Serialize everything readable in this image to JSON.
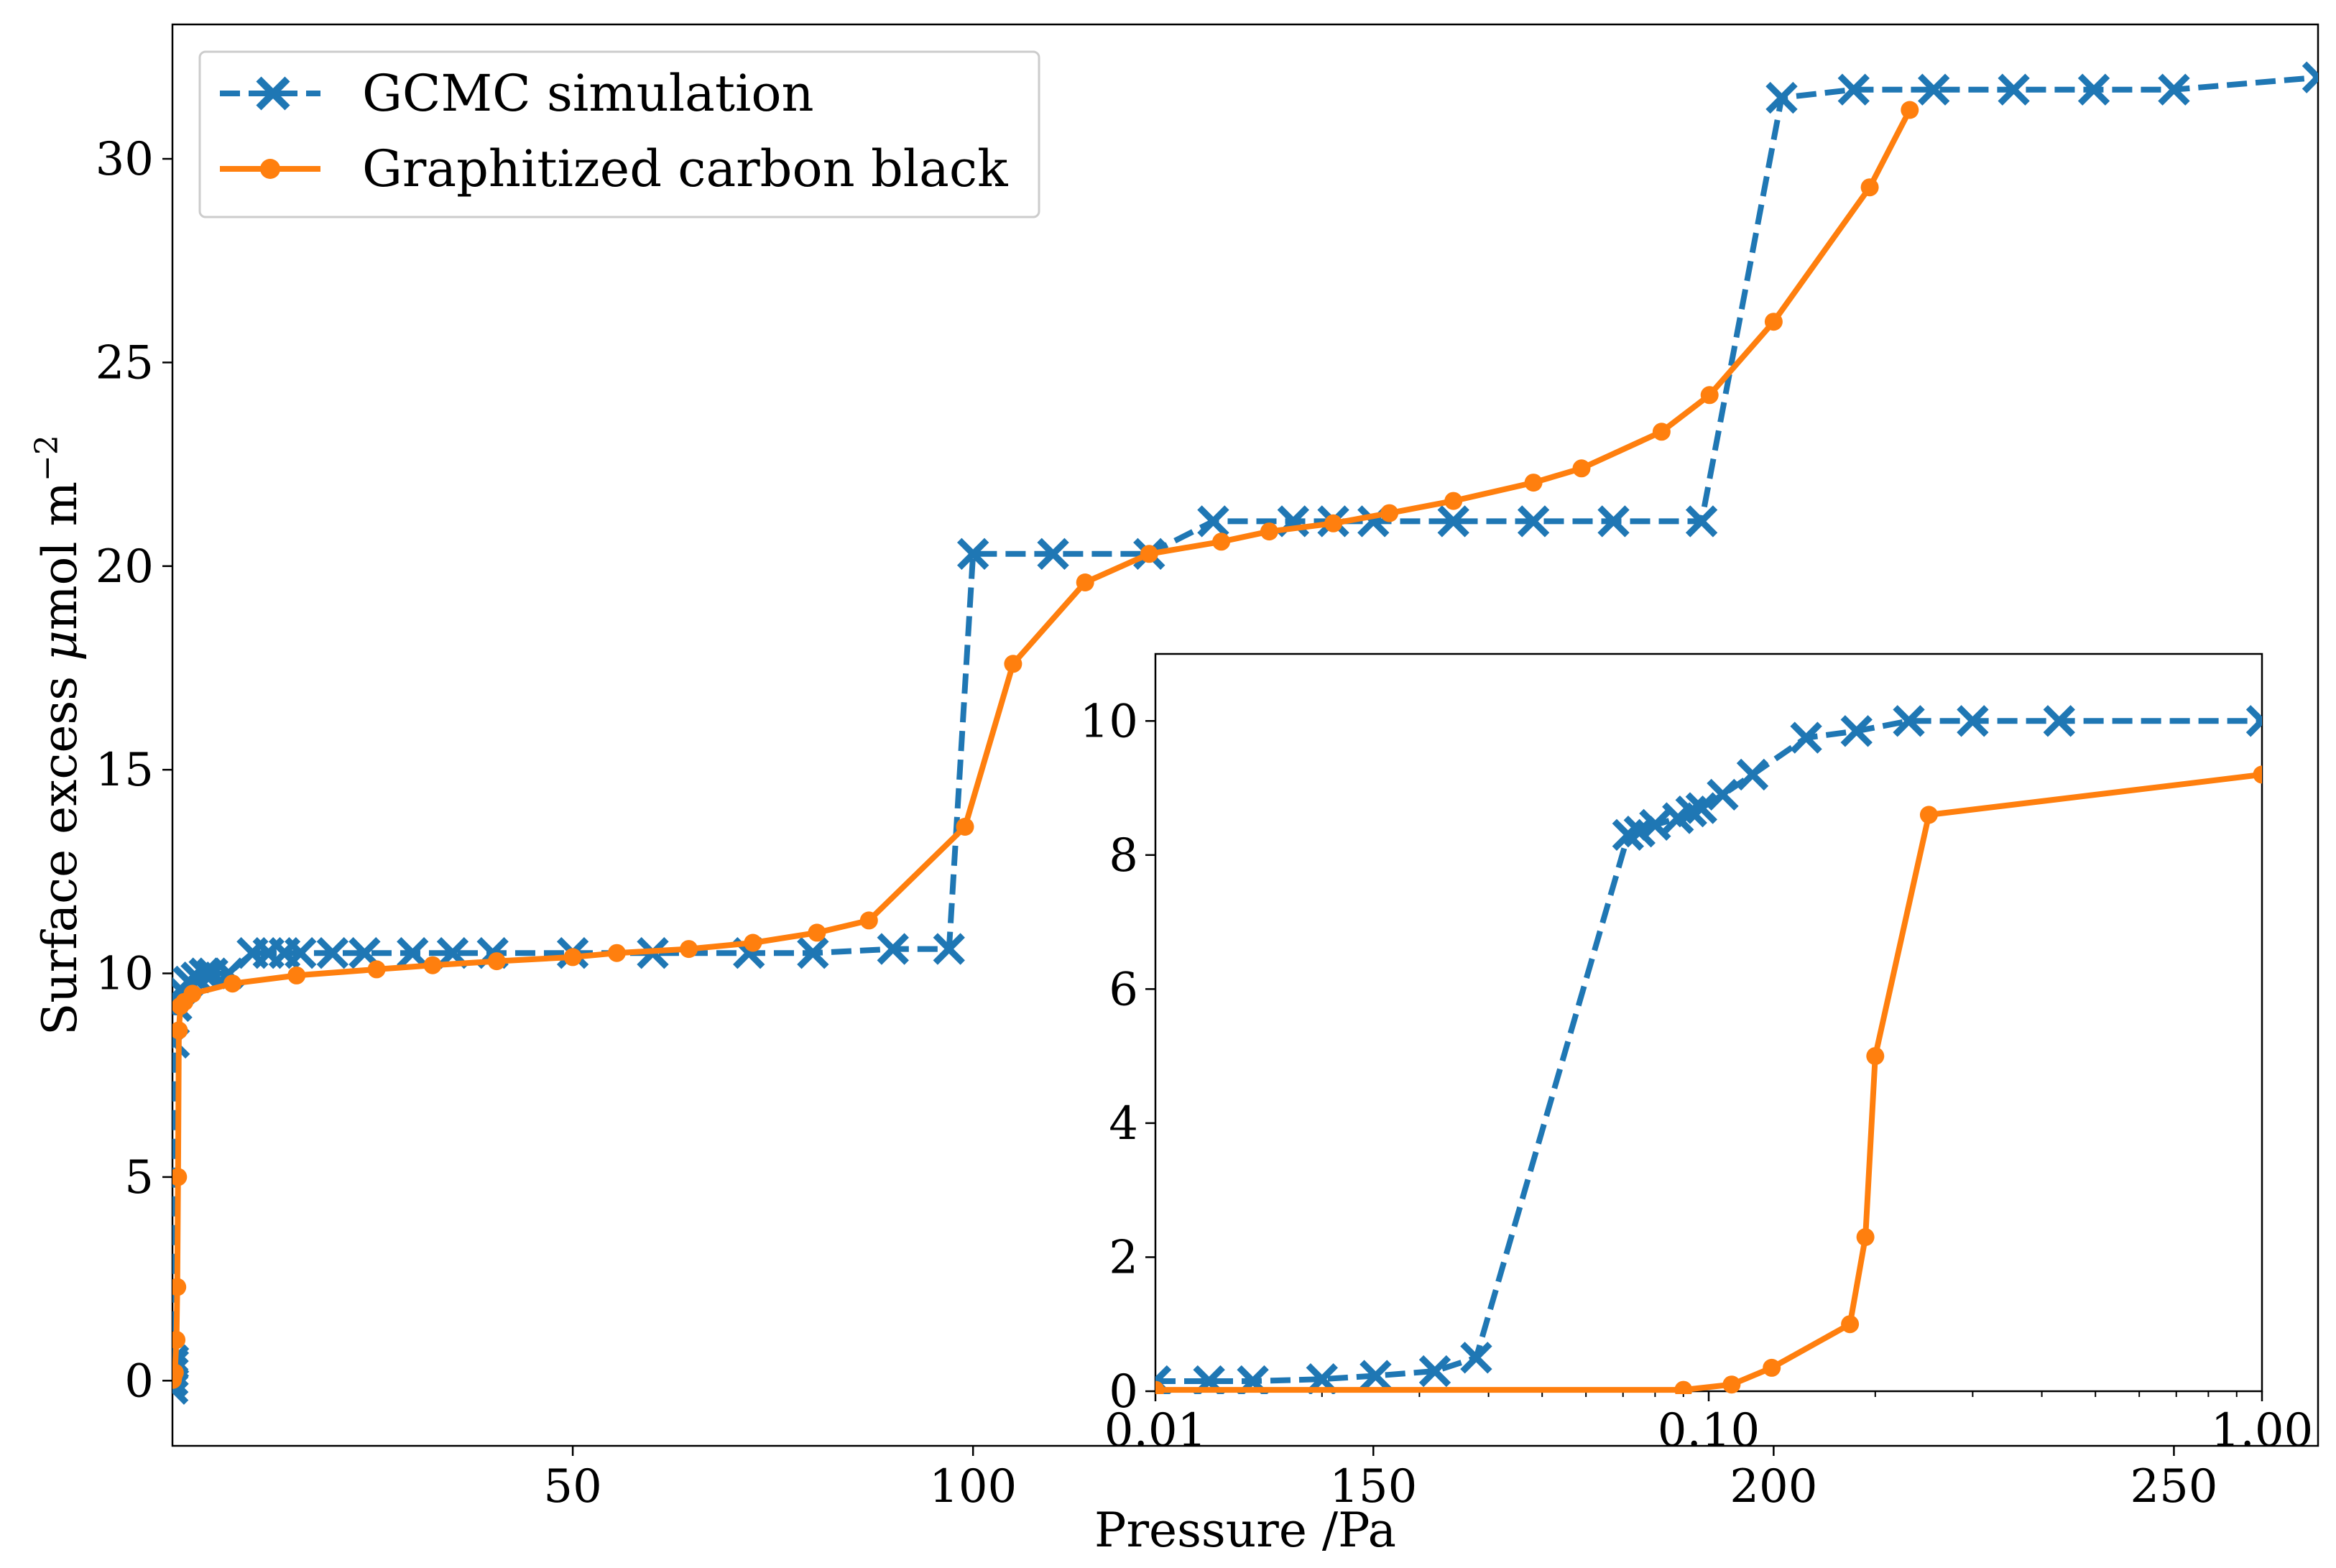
{
  "chart_data": [
    {
      "type": "line",
      "role": "main",
      "xlabel": "Pressure /Pa",
      "ylabel": "Surface excess μmol m⁻²",
      "ylabel_parts": {
        "main": "Surface excess ",
        "mu": "μ",
        "unit": "mol m",
        "sup": "−2"
      },
      "xlim": [
        0,
        268
      ],
      "ylim": [
        -1.6,
        33.3
      ],
      "xticks": [
        50,
        100,
        150,
        200,
        250
      ],
      "xtick_labels": [
        "50",
        "100",
        "150",
        "200",
        "250"
      ],
      "yticks": [
        0,
        5,
        10,
        15,
        20,
        25,
        30
      ],
      "ytick_labels": [
        "0",
        "5",
        "10",
        "15",
        "20",
        "25",
        "30"
      ],
      "legend": {
        "location": "upper-left",
        "entries": [
          "GCMC simulation",
          "Graphitized carbon black"
        ]
      },
      "series": [
        {
          "name": "GCMC simulation",
          "color": "#1f77b4",
          "style": "dashed",
          "marker": "x",
          "x": [
            0.01,
            0.02,
            0.05,
            0.08,
            0.1,
            0.2,
            0.5,
            1,
            2,
            3,
            4,
            5,
            7,
            10,
            12,
            14,
            16,
            20,
            24,
            30,
            35,
            40,
            50,
            60,
            72,
            80,
            90,
            97,
            100,
            110,
            122,
            130,
            140,
            145,
            150,
            160,
            170,
            180,
            191,
            201,
            210,
            220,
            230,
            240,
            250,
            268
          ],
          "y": [
            -0.2,
            0.0,
            0.2,
            0.4,
            0.5,
            8.3,
            9.2,
            9.6,
            9.8,
            9.9,
            10.0,
            10.0,
            10.0,
            10.5,
            10.5,
            10.5,
            10.5,
            10.5,
            10.5,
            10.5,
            10.5,
            10.5,
            10.5,
            10.5,
            10.5,
            10.5,
            10.6,
            10.6,
            20.3,
            20.3,
            20.3,
            21.1,
            21.1,
            21.1,
            21.1,
            21.1,
            21.1,
            21.1,
            21.1,
            31.5,
            31.7,
            31.7,
            31.7,
            31.7,
            31.7,
            32.0
          ]
        },
        {
          "name": "Graphitized carbon black",
          "color": "#ff7f0e",
          "style": "solid",
          "marker": "o",
          "x": [
            0.05,
            0.12,
            0.3,
            0.5,
            0.6,
            0.7,
            0.8,
            1.0,
            1.5,
            2.5,
            7.5,
            15.5,
            25.5,
            32.5,
            40.5,
            50,
            55.5,
            64.5,
            72.5,
            80.5,
            87,
            99,
            105,
            114,
            122,
            131,
            137,
            145,
            152,
            160,
            170,
            176,
            186,
            192,
            200,
            212,
            217
          ],
          "y": [
            0.02,
            0.1,
            0.2,
            1.0,
            2.3,
            5.0,
            8.6,
            9.2,
            9.3,
            9.5,
            9.75,
            9.95,
            10.1,
            10.2,
            10.3,
            10.4,
            10.5,
            10.6,
            10.75,
            11.0,
            11.3,
            13.6,
            17.6,
            19.6,
            20.3,
            20.6,
            20.85,
            21.05,
            21.3,
            21.6,
            22.05,
            22.4,
            23.3,
            24.2,
            26.0,
            29.3,
            31.2
          ]
        }
      ]
    },
    {
      "type": "line",
      "role": "inset",
      "xscale": "log",
      "xlim": [
        0.01,
        1.0
      ],
      "ylim": [
        0,
        11
      ],
      "xticks": [
        0.01,
        0.1,
        1.0
      ],
      "xtick_labels": [
        "0.01",
        "0.10",
        "1.00"
      ],
      "yticks": [
        0,
        2,
        4,
        6,
        8,
        10
      ],
      "ytick_labels": [
        "0",
        "2",
        "4",
        "6",
        "8",
        "10"
      ],
      "series": [
        {
          "name": "GCMC simulation",
          "color": "#1f77b4",
          "style": "dashed",
          "marker": "x",
          "x": [
            0.01,
            0.0125,
            0.015,
            0.02,
            0.025,
            0.032,
            0.038,
            0.0715,
            0.075,
            0.08,
            0.088,
            0.093,
            0.097,
            0.106,
            0.12,
            0.15,
            0.185,
            0.23,
            0.3,
            0.43,
            1.0
          ],
          "y": [
            0.15,
            0.15,
            0.15,
            0.18,
            0.23,
            0.3,
            0.5,
            8.3,
            8.35,
            8.45,
            8.55,
            8.65,
            8.7,
            8.9,
            9.2,
            9.75,
            9.85,
            10.0,
            10.0,
            10.0,
            10.0
          ]
        },
        {
          "name": "Graphitized carbon black",
          "color": "#ff7f0e",
          "style": "solid",
          "marker": "o",
          "x": [
            0.01,
            0.09,
            0.11,
            0.13,
            0.18,
            0.192,
            0.2,
            0.25,
            1.0
          ],
          "y": [
            0.02,
            0.02,
            0.1,
            0.35,
            1.0,
            2.3,
            5.0,
            8.6,
            9.2
          ]
        }
      ]
    }
  ]
}
